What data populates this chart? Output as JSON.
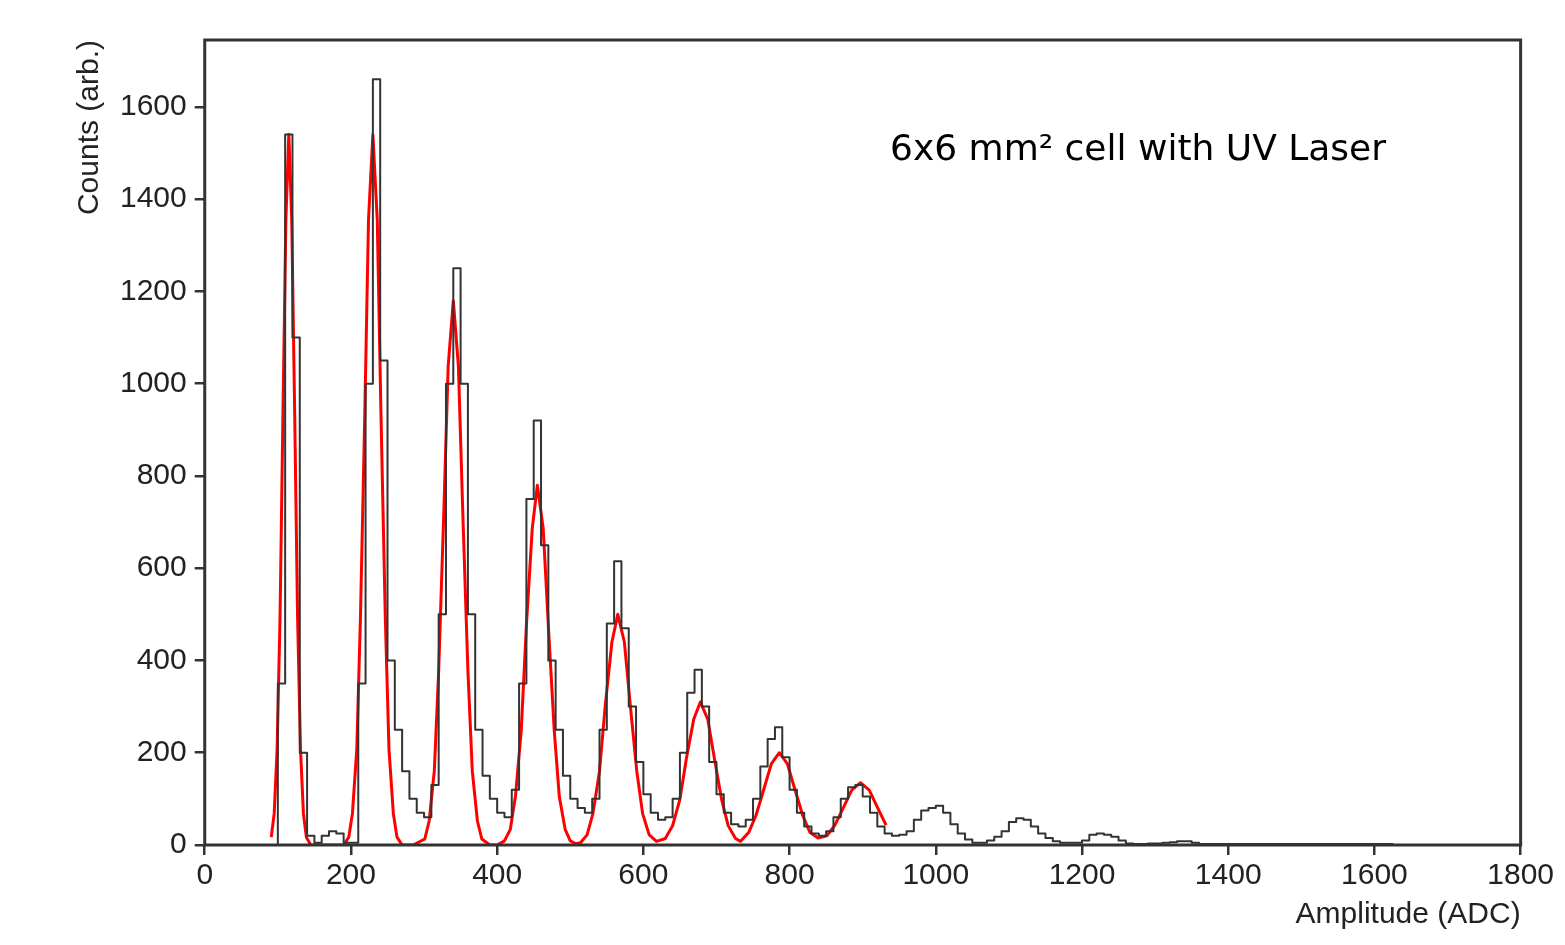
{
  "chart_data": {
    "type": "step",
    "xlabel": "Amplitude (ADC)",
    "ylabel": "Counts (arb.)",
    "annotations": [
      "6x6 mm² cell with UV Laser"
    ],
    "xlim": [
      0,
      1800
    ],
    "xticks": [
      0,
      200,
      400,
      600,
      800,
      1000,
      1200,
      1400,
      1600,
      1800
    ],
    "ylim": [
      0,
      1745
    ],
    "yticks": [
      0,
      200,
      400,
      600,
      800,
      1000,
      1200,
      1400,
      1600
    ],
    "grid": false,
    "legend": false,
    "series": [
      {
        "type": "step",
        "color": "#333333",
        "x": [
          85,
          95,
          105,
          115,
          125,
          135,
          145,
          155,
          165,
          175,
          185,
          195,
          205,
          215,
          225,
          235,
          245,
          255,
          265,
          275,
          285,
          295,
          305,
          315,
          325,
          335,
          345,
          355,
          365,
          375,
          385,
          395,
          405,
          415,
          425,
          435,
          445,
          455,
          465,
          475,
          485,
          495,
          505,
          515,
          525,
          535,
          545,
          555,
          565,
          575,
          585,
          595,
          605,
          615,
          625,
          635,
          645,
          655,
          665,
          675,
          685,
          695,
          705,
          715,
          725,
          735,
          745,
          755,
          765,
          775,
          785,
          795,
          805,
          815,
          825,
          835,
          845,
          855,
          865,
          875,
          885,
          895,
          905,
          915,
          925,
          935,
          945,
          955,
          965,
          975,
          985,
          995,
          1005,
          1015,
          1025,
          1035,
          1045,
          1055,
          1065,
          1075,
          1085,
          1095,
          1105,
          1115,
          1125,
          1135,
          1145,
          1155,
          1165,
          1175,
          1185,
          1195,
          1205,
          1215,
          1225,
          1235,
          1245,
          1255,
          1265,
          1275,
          1285,
          1295,
          1305,
          1315,
          1325,
          1335,
          1345,
          1355,
          1365,
          1375,
          1400,
          1500,
          1600,
          1650
        ],
        "values": [
          0,
          0,
          350,
          1540,
          1100,
          200,
          20,
          5,
          20,
          30,
          25,
          5,
          5,
          350,
          1000,
          1660,
          1050,
          400,
          250,
          160,
          100,
          70,
          60,
          130,
          500,
          1000,
          1250,
          1000,
          500,
          250,
          150,
          100,
          70,
          60,
          120,
          350,
          750,
          920,
          650,
          400,
          250,
          150,
          100,
          80,
          70,
          100,
          250,
          480,
          615,
          470,
          300,
          180,
          110,
          70,
          55,
          60,
          100,
          200,
          330,
          380,
          300,
          180,
          110,
          70,
          45,
          40,
          55,
          100,
          170,
          230,
          255,
          190,
          120,
          70,
          40,
          25,
          20,
          30,
          60,
          100,
          125,
          130,
          105,
          70,
          40,
          25,
          20,
          22,
          30,
          55,
          75,
          80,
          85,
          70,
          45,
          25,
          12,
          5,
          5,
          10,
          18,
          30,
          50,
          58,
          55,
          40,
          25,
          15,
          8,
          5,
          5,
          5,
          10,
          22,
          25,
          22,
          18,
          10,
          3,
          2,
          2,
          3,
          3,
          5,
          6,
          8,
          8,
          5,
          2,
          2,
          2,
          2,
          2,
          0
        ]
      },
      {
        "type": "line",
        "color": "#ff0000",
        "x": [
          91,
          95,
          99,
          103,
          107,
          111,
          115,
          119,
          123,
          127,
          131,
          135,
          139,
          145,
          190,
          197,
          202,
          208,
          213,
          219,
          224,
          230,
          236,
          241,
          247,
          252,
          258,
          263,
          270,
          285,
          301,
          307,
          314,
          320,
          327,
          333,
          340,
          347,
          353,
          360,
          366,
          373,
          379,
          390,
          400,
          410,
          418,
          425,
          433,
          440,
          448,
          455,
          463,
          470,
          478,
          485,
          493,
          500,
          507,
          514,
          523,
          531,
          540,
          548,
          557,
          565,
          574,
          582,
          591,
          599,
          608,
          618,
          630,
          640,
          650,
          659,
          669,
          678,
          688,
          697,
          707,
          716,
          726,
          733,
          744,
          754,
          765,
          775,
          786,
          797,
          807,
          818,
          828,
          839,
          851,
          862,
          874,
          885,
          897,
          909,
          920,
          932
        ],
        "values": [
          17,
          68,
          208,
          493,
          939,
          1355,
          1540,
          1355,
          939,
          493,
          208,
          68,
          17,
          0,
          0,
          17,
          68,
          208,
          493,
          939,
          1355,
          1540,
          1355,
          939,
          493,
          208,
          68,
          17,
          0,
          0,
          13,
          52,
          160,
          378,
          720,
          1038,
          1180,
          1038,
          720,
          378,
          160,
          52,
          13,
          0,
          0,
          9,
          34,
          105,
          250,
          476,
          686,
          780,
          686,
          476,
          250,
          105,
          34,
          9,
          3,
          5,
          22,
          68,
          160,
          305,
          440,
          500,
          440,
          305,
          160,
          68,
          22,
          8,
          14,
          42,
          99,
          189,
          273,
          310,
          273,
          189,
          99,
          42,
          14,
          8,
          27,
          64,
          122,
          176,
          200,
          176,
          122,
          64,
          27,
          15,
          20,
          43,
          82,
          119,
          135,
          119,
          82,
          43
        ]
      }
    ]
  }
}
